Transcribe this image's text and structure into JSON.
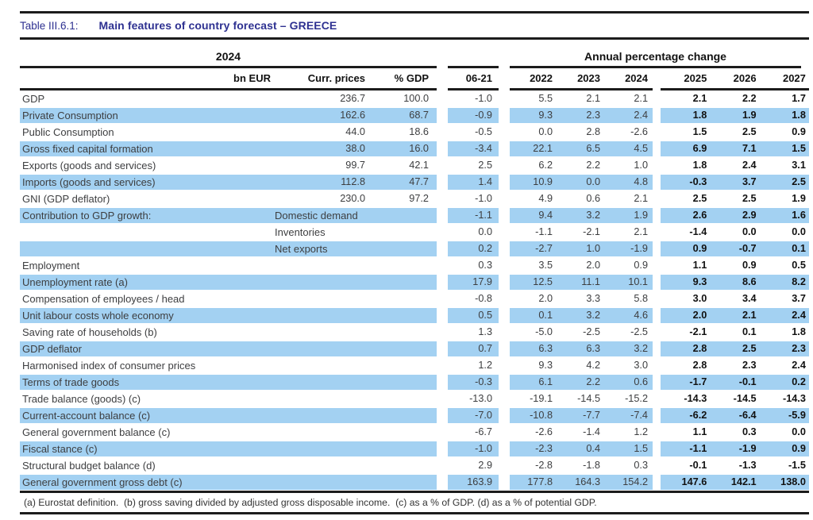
{
  "document": {
    "table_id": "Table III.6.1:",
    "title": "Main features of country forecast – GREECE"
  },
  "header": {
    "group_2024": "2024",
    "group_annual": "Annual percentage change",
    "bn_eur": "bn EUR",
    "curr_prices": "Curr. prices",
    "pct_gdp": "% GDP",
    "avg_col": "06-21",
    "years": [
      "2022",
      "2023",
      "2024",
      "2025",
      "2026",
      "2027"
    ]
  },
  "rows": [
    {
      "label": "GDP",
      "sub": "",
      "cp": "236.7",
      "pg": "100.0",
      "c0621": "-1.0",
      "y2022": "5.5",
      "y2023": "2.1",
      "y2024": "2.1",
      "y2025": "2.1",
      "y2026": "2.2",
      "y2027": "1.7"
    },
    {
      "label": "Private Consumption",
      "sub": "",
      "cp": "162.6",
      "pg": "68.7",
      "c0621": "-0.9",
      "y2022": "9.3",
      "y2023": "2.3",
      "y2024": "2.4",
      "y2025": "1.8",
      "y2026": "1.9",
      "y2027": "1.8"
    },
    {
      "label": "Public Consumption",
      "sub": "",
      "cp": "44.0",
      "pg": "18.6",
      "c0621": "-0.5",
      "y2022": "0.0",
      "y2023": "2.8",
      "y2024": "-2.6",
      "y2025": "1.5",
      "y2026": "2.5",
      "y2027": "0.9"
    },
    {
      "label": "Gross fixed capital formation",
      "sub": "",
      "cp": "38.0",
      "pg": "16.0",
      "c0621": "-3.4",
      "y2022": "22.1",
      "y2023": "6.5",
      "y2024": "4.5",
      "y2025": "6.9",
      "y2026": "7.1",
      "y2027": "1.5"
    },
    {
      "label": "Exports (goods and services)",
      "sub": "",
      "cp": "99.7",
      "pg": "42.1",
      "c0621": "2.5",
      "y2022": "6.2",
      "y2023": "2.2",
      "y2024": "1.0",
      "y2025": "1.8",
      "y2026": "2.4",
      "y2027": "3.1"
    },
    {
      "label": "Imports (goods and services)",
      "sub": "",
      "cp": "112.8",
      "pg": "47.7",
      "c0621": "1.4",
      "y2022": "10.9",
      "y2023": "0.0",
      "y2024": "4.8",
      "y2025": "-0.3",
      "y2026": "3.7",
      "y2027": "2.5"
    },
    {
      "label": "GNI (GDP deflator)",
      "sub": "",
      "cp": "230.0",
      "pg": "97.2",
      "c0621": "-1.0",
      "y2022": "4.9",
      "y2023": "0.6",
      "y2024": "2.1",
      "y2025": "2.5",
      "y2026": "2.5",
      "y2027": "1.9"
    },
    {
      "label": "Contribution to GDP growth:",
      "sub": "Domestic demand",
      "cp": "",
      "pg": "",
      "c0621": "-1.1",
      "y2022": "9.4",
      "y2023": "3.2",
      "y2024": "1.9",
      "y2025": "2.6",
      "y2026": "2.9",
      "y2027": "1.6"
    },
    {
      "label": "",
      "sub": "Inventories",
      "cp": "",
      "pg": "",
      "c0621": "0.0",
      "y2022": "-1.1",
      "y2023": "-2.1",
      "y2024": "2.1",
      "y2025": "-1.4",
      "y2026": "0.0",
      "y2027": "0.0"
    },
    {
      "label": "",
      "sub": "Net exports",
      "cp": "",
      "pg": "",
      "c0621": "0.2",
      "y2022": "-2.7",
      "y2023": "1.0",
      "y2024": "-1.9",
      "y2025": "0.9",
      "y2026": "-0.7",
      "y2027": "0.1"
    },
    {
      "label": "Employment",
      "sub": "",
      "cp": "",
      "pg": "",
      "c0621": "0.3",
      "y2022": "3.5",
      "y2023": "2.0",
      "y2024": "0.9",
      "y2025": "1.1",
      "y2026": "0.9",
      "y2027": "0.5"
    },
    {
      "label": "Unemployment rate (a)",
      "sub": "",
      "cp": "",
      "pg": "",
      "c0621": "17.9",
      "y2022": "12.5",
      "y2023": "11.1",
      "y2024": "10.1",
      "y2025": "9.3",
      "y2026": "8.6",
      "y2027": "8.2"
    },
    {
      "label": "Compensation of employees / head",
      "sub": "",
      "cp": "",
      "pg": "",
      "c0621": "-0.8",
      "y2022": "2.0",
      "y2023": "3.3",
      "y2024": "5.8",
      "y2025": "3.0",
      "y2026": "3.4",
      "y2027": "3.7"
    },
    {
      "label": "Unit labour costs whole economy",
      "sub": "",
      "cp": "",
      "pg": "",
      "c0621": "0.5",
      "y2022": "0.1",
      "y2023": "3.2",
      "y2024": "4.6",
      "y2025": "2.0",
      "y2026": "2.1",
      "y2027": "2.4"
    },
    {
      "label": "Saving rate of households (b)",
      "sub": "",
      "cp": "",
      "pg": "",
      "c0621": "1.3",
      "y2022": "-5.0",
      "y2023": "-2.5",
      "y2024": "-2.5",
      "y2025": "-2.1",
      "y2026": "0.1",
      "y2027": "1.8"
    },
    {
      "label": "GDP deflator",
      "sub": "",
      "cp": "",
      "pg": "",
      "c0621": "0.7",
      "y2022": "6.3",
      "y2023": "6.3",
      "y2024": "3.2",
      "y2025": "2.8",
      "y2026": "2.5",
      "y2027": "2.3"
    },
    {
      "label": "Harmonised index of consumer prices",
      "sub": "",
      "cp": "",
      "pg": "",
      "c0621": "1.2",
      "y2022": "9.3",
      "y2023": "4.2",
      "y2024": "3.0",
      "y2025": "2.8",
      "y2026": "2.3",
      "y2027": "2.4"
    },
    {
      "label": "Terms of trade goods",
      "sub": "",
      "cp": "",
      "pg": "",
      "c0621": "-0.3",
      "y2022": "6.1",
      "y2023": "2.2",
      "y2024": "0.6",
      "y2025": "-1.7",
      "y2026": "-0.1",
      "y2027": "0.2"
    },
    {
      "label": "Trade balance (goods) (c)",
      "sub": "",
      "cp": "",
      "pg": "",
      "c0621": "-13.0",
      "y2022": "-19.1",
      "y2023": "-14.5",
      "y2024": "-15.2",
      "y2025": "-14.3",
      "y2026": "-14.5",
      "y2027": "-14.3"
    },
    {
      "label": "Current-account balance (c)",
      "sub": "",
      "cp": "",
      "pg": "",
      "c0621": "-7.0",
      "y2022": "-10.8",
      "y2023": "-7.7",
      "y2024": "-7.4",
      "y2025": "-6.2",
      "y2026": "-6.4",
      "y2027": "-5.9"
    },
    {
      "label": "General government balance (c)",
      "sub": "",
      "cp": "",
      "pg": "",
      "c0621": "-6.7",
      "y2022": "-2.6",
      "y2023": "-1.4",
      "y2024": "1.2",
      "y2025": "1.1",
      "y2026": "0.3",
      "y2027": "0.0"
    },
    {
      "label": "Fiscal stance (c)",
      "sub": "",
      "cp": "",
      "pg": "",
      "c0621": "-1.0",
      "y2022": "-2.3",
      "y2023": "0.4",
      "y2024": "1.5",
      "y2025": "-1.1",
      "y2026": "-1.9",
      "y2027": "0.9"
    },
    {
      "label": "Structural budget balance (d)",
      "sub": "",
      "cp": "",
      "pg": "",
      "c0621": "2.9",
      "y2022": "-2.8",
      "y2023": "-1.8",
      "y2024": "0.3",
      "y2025": "-0.1",
      "y2026": "-1.3",
      "y2027": "-1.5"
    },
    {
      "label": "General government gross debt (c)",
      "sub": "",
      "cp": "",
      "pg": "",
      "c0621": "163.9",
      "y2022": "177.8",
      "y2023": "164.3",
      "y2024": "154.2",
      "y2025": "147.6",
      "y2026": "142.1",
      "y2027": "138.0"
    }
  ],
  "footnote": "(a) Eurostat definition.  (b) gross saving divided by adjusted gross disposable income.  (c) as a % of GDP. (d) as a % of potential GDP.",
  "colors": {
    "accent_navy": "#2E3191",
    "row_highlight": "#A3D1F2",
    "rule_black": "#1C1C1C"
  }
}
